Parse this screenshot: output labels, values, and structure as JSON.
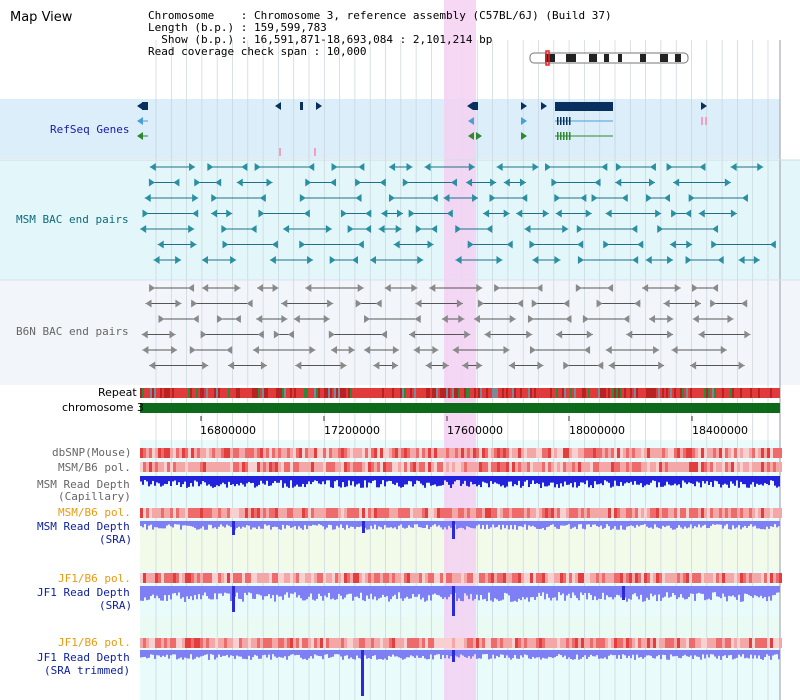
{
  "header": {
    "title": "Map View",
    "info_lines": [
      "Chromosome    : Chromosome 3, reference assembly (C57BL/6J) (Build 37)",
      "Length (b.p.) : 159,599,783",
      "  Show (b.p.) : 16,591,871-18,693,084 : 2,101,214 bp",
      "Read coverage check span : 10,000"
    ]
  },
  "tracks": {
    "refseq": "RefSeq Genes",
    "msm_bac": "MSM BAC end pairs",
    "b6n_bac": "B6N BAC end pairs",
    "repeat": "Repeat",
    "chromosome": "chromosome 3",
    "dbsnp": "dbSNP(Mouse)",
    "msm_b6_pol": "MSM/B6 pol.",
    "msm_depth_cap_1": "MSM Read Depth",
    "msm_depth_cap_2": "(Capillary)",
    "msm_b6_pol_2": "MSM/B6 pol.",
    "msm_depth_sra_1": "MSM Read Depth",
    "msm_depth_sra_2": "(SRA)",
    "jf1_b6_pol_1": "JF1/B6 pol.",
    "jf1_depth_sra_1": "JF1 Read Depth",
    "jf1_depth_sra_2": "(SRA)",
    "jf1_b6_pol_2": "JF1/B6 pol.",
    "jf1_depth_trim_1": "JF1 Read Depth",
    "jf1_depth_trim_2": "(SRA trimmed)"
  },
  "axis": {
    "ticks": [
      "16800000",
      "17200000",
      "17600000",
      "18000000",
      "18400000"
    ]
  },
  "colors": {
    "refseq_bg": "#dbeef9",
    "msm_bg": "#e3f7fb",
    "b6n_bg": "#f2f6fa",
    "highlight": "#f5d1f3",
    "chromosome": "#0d6a1a",
    "repeat_red": "#e03a3a",
    "depth_blue": "#2222dd",
    "depth_light": "#7f7ff5"
  }
}
